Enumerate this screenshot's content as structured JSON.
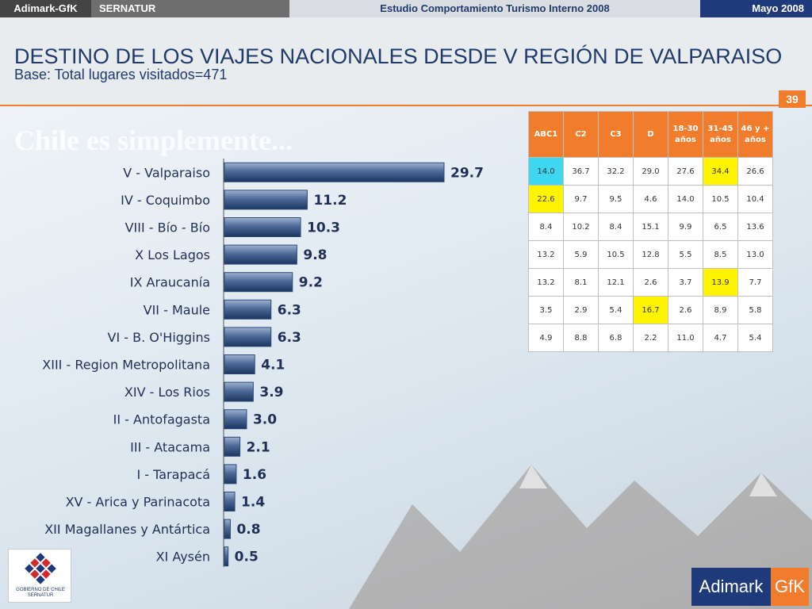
{
  "topbar": {
    "brand": "Adimark-GfK",
    "client": "SERNATUR",
    "study": "Estudio Comportamiento Turismo Interno 2008",
    "date": "Mayo 2008"
  },
  "header": {
    "title": "DESTINO DE LOS VIAJES NACIONALES DESDE V REGIÓN DE VALPARAISO",
    "subtitle": "Base: Total lugares visitados=471",
    "page_number": "39"
  },
  "background": {
    "slogan": "Chile es simplemente..."
  },
  "chart_data": {
    "type": "bar",
    "orientation": "horizontal",
    "categories": [
      "V - Valparaiso",
      "IV - Coquimbo",
      "VIII - Bío - Bío",
      "X Los Lagos",
      "IX Araucanía",
      "VII - Maule",
      "VI - B. O'Higgins",
      "XIII - Region Metropolitana",
      "XIV - Los Rios",
      "II - Antofagasta",
      "III - Atacama",
      "I - Tarapacá",
      "XV - Arica y Parinacota",
      "XII Magallanes y Antártica",
      "XI Aysén"
    ],
    "values": [
      29.7,
      11.2,
      10.3,
      9.8,
      9.2,
      6.3,
      6.3,
      4.1,
      3.9,
      3.0,
      2.1,
      1.6,
      1.4,
      0.8,
      0.5
    ],
    "value_labels": [
      "29.7",
      "11.2",
      "10.3",
      "9.8",
      "9.2",
      "6.3",
      "6.3",
      "4.1",
      "3.9",
      "3.0",
      "2.1",
      "1.6",
      "1.4",
      "0.8",
      "0.5"
    ],
    "xlim": [
      0,
      30
    ],
    "bar_color": "#2b4a7a",
    "grid": false
  },
  "table": {
    "headers": [
      "ABC1",
      "C2",
      "C3",
      "D",
      "18-30 años",
      "31-45 años",
      "46 y + años"
    ],
    "rows": [
      [
        "14.0",
        "36.7",
        "32.2",
        "29.0",
        "27.6",
        "34.4",
        "26.6"
      ],
      [
        "22.6",
        "9.7",
        "9.5",
        "4.6",
        "14.0",
        "10.5",
        "10.4"
      ],
      [
        "8.4",
        "10.2",
        "8.4",
        "15.1",
        "9.9",
        "6.5",
        "13.6"
      ],
      [
        "13.2",
        "5.9",
        "10.5",
        "12.8",
        "5.5",
        "8.5",
        "13.0"
      ],
      [
        "13.2",
        "8.1",
        "12.1",
        "2.6",
        "3.7",
        "13.9",
        "7.7"
      ],
      [
        "3.5",
        "2.9",
        "5.4",
        "16.7",
        "2.6",
        "8.9",
        "5.8"
      ],
      [
        "4.9",
        "8.8",
        "6.8",
        "2.2",
        "11.0",
        "4.7",
        "5.4"
      ]
    ],
    "highlights": [
      {
        "row": 0,
        "col": 0,
        "color": "cyan"
      },
      {
        "row": 0,
        "col": 5,
        "color": "yellow"
      },
      {
        "row": 1,
        "col": 0,
        "color": "yellow"
      },
      {
        "row": 4,
        "col": 5,
        "color": "yellow"
      },
      {
        "row": 5,
        "col": 3,
        "color": "yellow"
      }
    ]
  },
  "logos": {
    "gobierno": "GOBIERNO DE CHILE SERNATUR",
    "adimark": "Adimark",
    "gfk": "GfK"
  },
  "colors": {
    "accent": "#f07c2c",
    "navy": "#1f3a7a",
    "highlight_cyan": "#3fd6f0",
    "highlight_yellow": "#fff400"
  }
}
